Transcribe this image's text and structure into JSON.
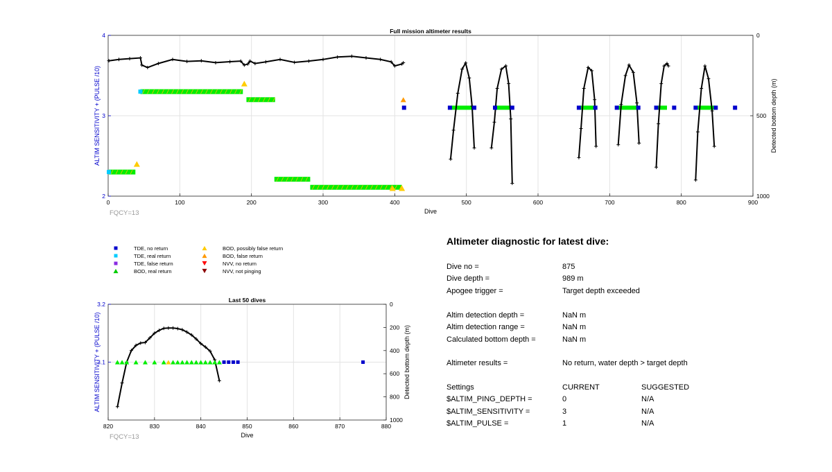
{
  "chart_data": [
    {
      "type": "scatter",
      "title": "Full mission altimeter results",
      "xlabel": "Dive",
      "ylabel": "ALTIM SENSITIVITY + (PULSE /10)",
      "y2label": "Detected bottom depth (m)",
      "annotation": "FQCY=13",
      "xlim": [
        0,
        900
      ],
      "ylim": [
        2,
        4
      ],
      "y2lim": [
        0,
        1000
      ],
      "y2reversed": true,
      "xticks": [
        "0",
        "100",
        "200",
        "300",
        "400",
        "500",
        "600",
        "700",
        "800",
        "900"
      ],
      "yticks": [
        "2",
        "3",
        "4"
      ],
      "y2ticks": [
        "0",
        "500",
        "1000"
      ],
      "grid": true,
      "bod_real_segments": [
        [
          1,
          38,
          2.3
        ],
        [
          45,
          188,
          3.3
        ],
        [
          193,
          233,
          3.2
        ],
        [
          232,
          282,
          2.21
        ],
        [
          282,
          410,
          2.11
        ]
      ],
      "tde_no_return": [
        [
          413,
          3.1
        ],
        [
          477,
          3.1
        ],
        [
          511,
          3.1
        ],
        [
          540,
          3.1
        ],
        [
          564,
          3.1
        ],
        [
          657,
          3.1
        ],
        [
          680,
          3.1
        ],
        [
          710,
          3.1
        ],
        [
          740,
          3.1
        ],
        [
          765,
          3.1
        ],
        [
          790,
          3.1
        ],
        [
          820,
          3.1
        ],
        [
          848,
          3.1
        ],
        [
          875,
          3.1
        ]
      ],
      "tde_real_return": [
        [
          45,
          3.3
        ],
        [
          1,
          2.3
        ]
      ],
      "bod_possibly_false": [
        [
          40,
          2.4
        ],
        [
          190,
          3.4
        ],
        [
          397,
          2.1
        ],
        [
          410,
          2.1
        ]
      ],
      "bod_false": [
        [
          412,
          3.2
        ]
      ],
      "green_bands": [
        [
          478,
          510,
          3.1
        ],
        [
          538,
          562,
          3.1
        ],
        [
          658,
          680,
          3.1
        ],
        [
          712,
          740,
          3.1
        ],
        [
          767,
          780,
          3.1
        ],
        [
          822,
          848,
          3.1
        ]
      ],
      "depth_early": {
        "x": [
          1,
          15,
          30,
          45,
          47,
          55,
          70,
          90,
          110,
          130,
          150,
          170,
          185,
          190,
          195,
          198,
          205,
          220,
          240,
          260,
          280,
          300,
          320,
          340,
          360,
          380,
          395,
          400,
          410,
          412
        ],
        "y": [
          158,
          150,
          145,
          140,
          185,
          200,
          175,
          150,
          162,
          158,
          170,
          164,
          160,
          185,
          178,
          160,
          175,
          165,
          150,
          168,
          160,
          150,
          135,
          130,
          140,
          150,
          165,
          190,
          178,
          170
        ]
      },
      "depth_curves": [
        {
          "x": [
            478,
            482,
            488,
            494,
            499,
            504,
            508,
            511
          ],
          "y": [
            770,
            590,
            360,
            210,
            172,
            265,
            440,
            700
          ]
        },
        {
          "x": [
            535,
            539,
            543,
            549,
            555,
            559,
            562,
            564
          ],
          "y": [
            700,
            540,
            330,
            210,
            190,
            300,
            520,
            920
          ]
        },
        {
          "x": [
            657,
            660,
            664,
            670,
            675,
            679,
            681
          ],
          "y": [
            760,
            580,
            330,
            200,
            220,
            400,
            690
          ]
        },
        {
          "x": [
            712,
            716,
            722,
            727,
            733,
            738,
            741
          ],
          "y": [
            680,
            430,
            250,
            185,
            230,
            420,
            670
          ]
        },
        {
          "x": [
            765,
            768,
            772,
            776,
            780,
            782
          ],
          "y": [
            820,
            550,
            300,
            190,
            175,
            190
          ]
        },
        {
          "x": [
            820,
            823,
            828,
            833,
            838,
            843,
            846
          ],
          "y": [
            900,
            600,
            330,
            190,
            270,
            470,
            690
          ]
        }
      ]
    },
    {
      "type": "scatter",
      "title": "Last 50 dives",
      "xlabel": "Dive",
      "ylabel": "ALTIM SENSITIVITY + (PULSE /10)",
      "y2label": "Detected bottom depth (m)",
      "annotation": "FQCY=13",
      "xlim": [
        820,
        880
      ],
      "ylim": [
        3.0,
        3.2
      ],
      "y2lim": [
        0,
        1000
      ],
      "y2reversed": true,
      "xticks": [
        "820",
        "830",
        "840",
        "850",
        "860",
        "870",
        "880"
      ],
      "yticks": [
        "3.1",
        "3.2"
      ],
      "y2ticks": [
        "0",
        "200",
        "400",
        "600",
        "800",
        "1000"
      ],
      "grid": true,
      "bod_real": [
        822,
        823,
        824,
        826,
        828,
        830,
        832,
        834,
        835,
        836,
        837,
        838,
        839,
        840,
        841,
        842,
        843,
        844
      ],
      "bod_possibly_false": [
        833
      ],
      "tde_no_return": [
        845,
        846,
        847,
        848,
        875
      ],
      "depth": {
        "x": [
          822,
          823,
          824,
          825,
          826,
          827,
          828,
          829,
          830,
          831,
          832,
          833,
          834,
          835,
          836,
          837,
          838,
          839,
          840,
          841,
          842,
          843,
          844
        ],
        "y": [
          885,
          680,
          500,
          400,
          355,
          335,
          330,
          290,
          250,
          225,
          208,
          205,
          205,
          210,
          220,
          240,
          265,
          300,
          340,
          370,
          405,
          480,
          660
        ]
      }
    }
  ],
  "legend": {
    "items": [
      {
        "label": "TDE, no return",
        "symbol": "square",
        "color": "#0000cc"
      },
      {
        "label": "TDE, real return",
        "symbol": "square",
        "color": "#00ccff"
      },
      {
        "label": "TDE, false return",
        "symbol": "square",
        "color": "#8a2be2"
      },
      {
        "label": "BOD, real return",
        "symbol": "triangle-up",
        "color": "#00cc00"
      },
      {
        "label": "BOD, possibly false return",
        "symbol": "triangle-up",
        "color": "#ffcc00"
      },
      {
        "label": "BOD, false return",
        "symbol": "triangle-up",
        "color": "#ff9900"
      },
      {
        "label": "NVV, no return",
        "symbol": "triangle-down",
        "color": "#ff0000"
      },
      {
        "label": "NVV, not pinging",
        "symbol": "triangle-down",
        "color": "#8b0000"
      }
    ]
  },
  "diagnostic": {
    "title": "Altimeter diagnostic for latest dive:",
    "dive_no_label": "Dive no =",
    "dive_no_value": "875",
    "dive_depth_label": "Dive depth =",
    "dive_depth_value": "989 m",
    "apogee_label": "Apogee trigger =",
    "apogee_value": "Target depth exceeded",
    "altim_depth_label": "Altim detection depth =",
    "altim_depth_value": "NaN m",
    "altim_range_label": "Altim detection range =",
    "altim_range_value": "NaN m",
    "calc_bottom_label": "Calculated bottom depth =",
    "calc_bottom_value": "NaN m",
    "results_label": "Altimeter results =",
    "results_value": "No return, water depth > target depth",
    "settings_label": "Settings",
    "current_header": "CURRENT",
    "suggested_header": "SUGGESTED",
    "ping_depth_label": "$ALTIM_PING_DEPTH =",
    "ping_depth_current": "0",
    "ping_depth_suggested": "N/A",
    "sensitivity_label": "$ALTIM_SENSITIVITY =",
    "sensitivity_current": "3",
    "sensitivity_suggested": "N/A",
    "pulse_label": "$ALTIM_PULSE =",
    "pulse_current": "1",
    "pulse_suggested": "N/A"
  },
  "colors": {
    "axis_left": "#0000cc",
    "grid": "#e3e3e3",
    "annotation": "#999999",
    "depth_line": "#000000",
    "bod_real": "#00ee00",
    "bod_real_stripe": "#e6c200",
    "tde_no_return": "#0000cc",
    "tde_real_return": "#00ccff",
    "bod_possibly_false": "#ffcc00",
    "bod_false": "#ff9900"
  }
}
